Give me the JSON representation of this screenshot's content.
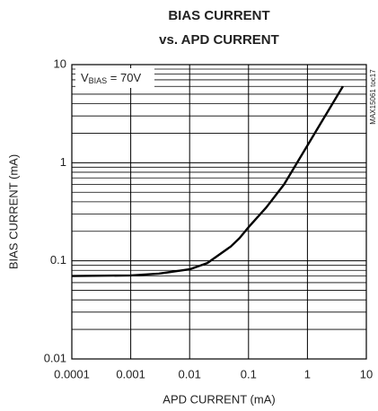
{
  "chart_data": {
    "type": "line",
    "title": [
      "BIAS CURRENT",
      "vs. APD CURRENT"
    ],
    "xlabel": "APD CURRENT (mA)",
    "ylabel": "BIAS CURRENT (mA)",
    "annotation": {
      "text": "V",
      "subscript": "BIAS",
      "suffix": " = 70V"
    },
    "side_label": "MAX15061 toc17",
    "x": [
      0.0001,
      0.001,
      0.003,
      0.01,
      0.02,
      0.05,
      0.07,
      0.1,
      0.2,
      0.4,
      1,
      2,
      4
    ],
    "values": [
      0.07,
      0.071,
      0.074,
      0.082,
      0.095,
      0.14,
      0.17,
      0.22,
      0.35,
      0.6,
      1.5,
      3,
      6
    ],
    "color": "#000000",
    "xlog": true,
    "ylog": true,
    "xlim": [
      0.0001,
      10
    ],
    "ylim": [
      0.01,
      10
    ],
    "xticks": [
      0.0001,
      0.001,
      0.01,
      0.1,
      1,
      10
    ],
    "yticks": [
      0.01,
      0.1,
      1,
      10
    ],
    "grid": true,
    "minor_grid_y": true
  }
}
